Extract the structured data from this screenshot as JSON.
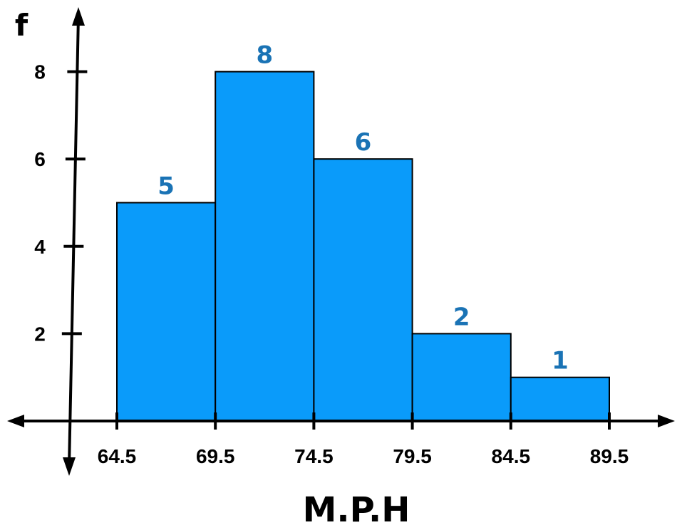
{
  "chart_data": {
    "type": "bar",
    "subtype": "histogram",
    "bins": [
      {
        "from": 64.5,
        "to": 69.5,
        "value": 5
      },
      {
        "from": 69.5,
        "to": 74.5,
        "value": 8
      },
      {
        "from": 74.5,
        "to": 79.5,
        "value": 6
      },
      {
        "from": 79.5,
        "to": 84.5,
        "value": 2
      },
      {
        "from": 84.5,
        "to": 89.5,
        "value": 1
      }
    ],
    "x_ticks": [
      "64.5",
      "69.5",
      "74.5",
      "79.5",
      "84.5",
      "89.5"
    ],
    "y_ticks": [
      "2",
      "4",
      "6",
      "8"
    ],
    "data_labels": [
      "5",
      "8",
      "6",
      "2",
      "1"
    ],
    "xlabel": "M.P.H",
    "ylabel": "f",
    "bar_color": "#0a9bfa",
    "label_color": "#1a73b5",
    "grid": false
  }
}
